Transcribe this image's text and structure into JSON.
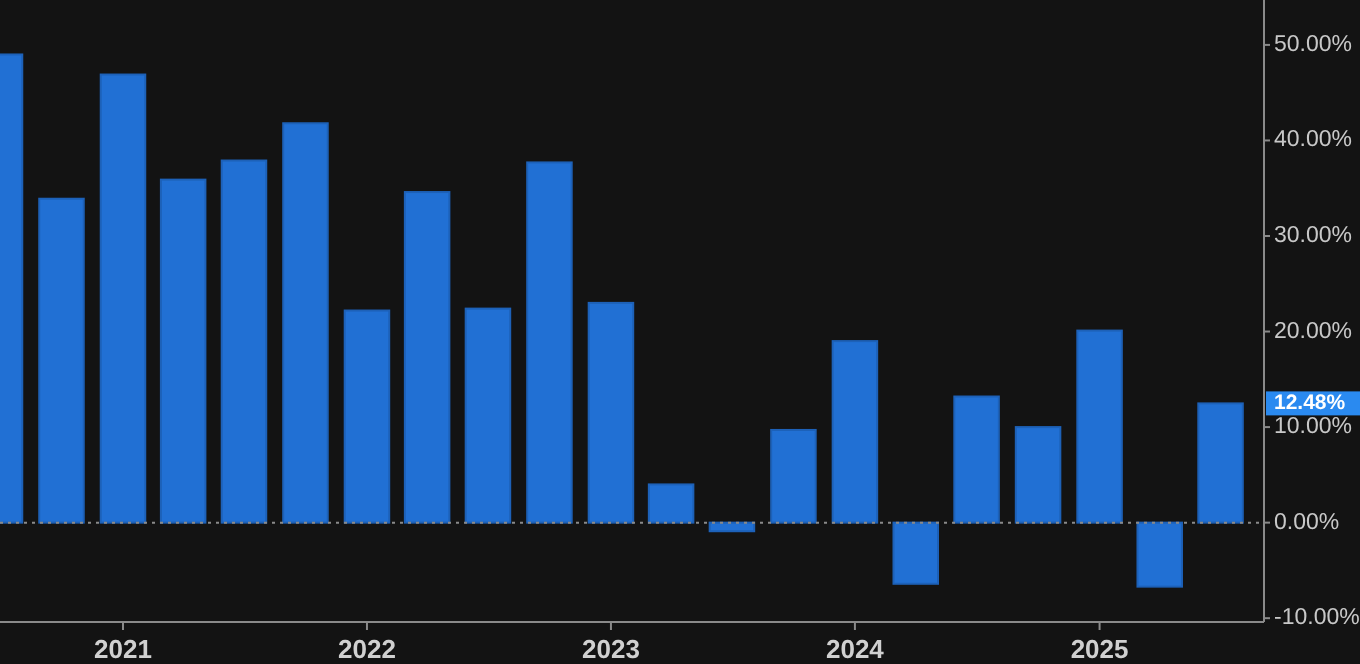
{
  "chart_data": {
    "type": "bar",
    "x": [
      "2020-07",
      "2020-10",
      "2021-01",
      "2021-04",
      "2021-07",
      "2021-10",
      "2022-01",
      "2022-04",
      "2022-07",
      "2022-10",
      "2023-01",
      "2023-04",
      "2023-07",
      "2023-10",
      "2024-01",
      "2024-04",
      "2024-07",
      "2024-10",
      "2025-01",
      "2025-04",
      "2025-07"
    ],
    "series": [
      {
        "color": "#2170d4",
        "values": [
          49.0,
          33.9,
          46.9,
          35.9,
          37.9,
          41.8,
          22.2,
          34.6,
          22.4,
          37.7,
          23.0,
          4.0,
          -0.9,
          9.7,
          19.0,
          -6.4,
          13.2,
          10.0,
          20.1,
          -6.7,
          12.48
        ]
      }
    ],
    "xlim": [
      "2020-07-01",
      "2025-09-04"
    ],
    "xticks": [
      {
        "value": "2021-01-01",
        "label": "2021"
      },
      {
        "value": "2022-01-01",
        "label": "2022"
      },
      {
        "value": "2023-01-01",
        "label": "2023"
      },
      {
        "value": "2024-01-01",
        "label": "2024"
      },
      {
        "value": "2025-01-01",
        "label": "2025"
      }
    ],
    "ylim": [
      -10.4,
      54.7
    ],
    "yticks": [
      {
        "value": -10,
        "label": "-10.00%"
      },
      {
        "value": 0,
        "label": "0.00%"
      },
      {
        "value": 10,
        "label": "10.00%"
      },
      {
        "value": 20,
        "label": "20.00%"
      },
      {
        "value": 30,
        "label": "30.00%"
      },
      {
        "value": 40,
        "label": "40.00%"
      },
      {
        "value": 50,
        "label": "50.00%"
      }
    ],
    "ref_lines": [
      {
        "axis": "y",
        "value": 0,
        "color": "#8a8a8a",
        "line_style": "dotted"
      }
    ],
    "annotations": [
      "12.48%"
    ],
    "grid": false
  }
}
